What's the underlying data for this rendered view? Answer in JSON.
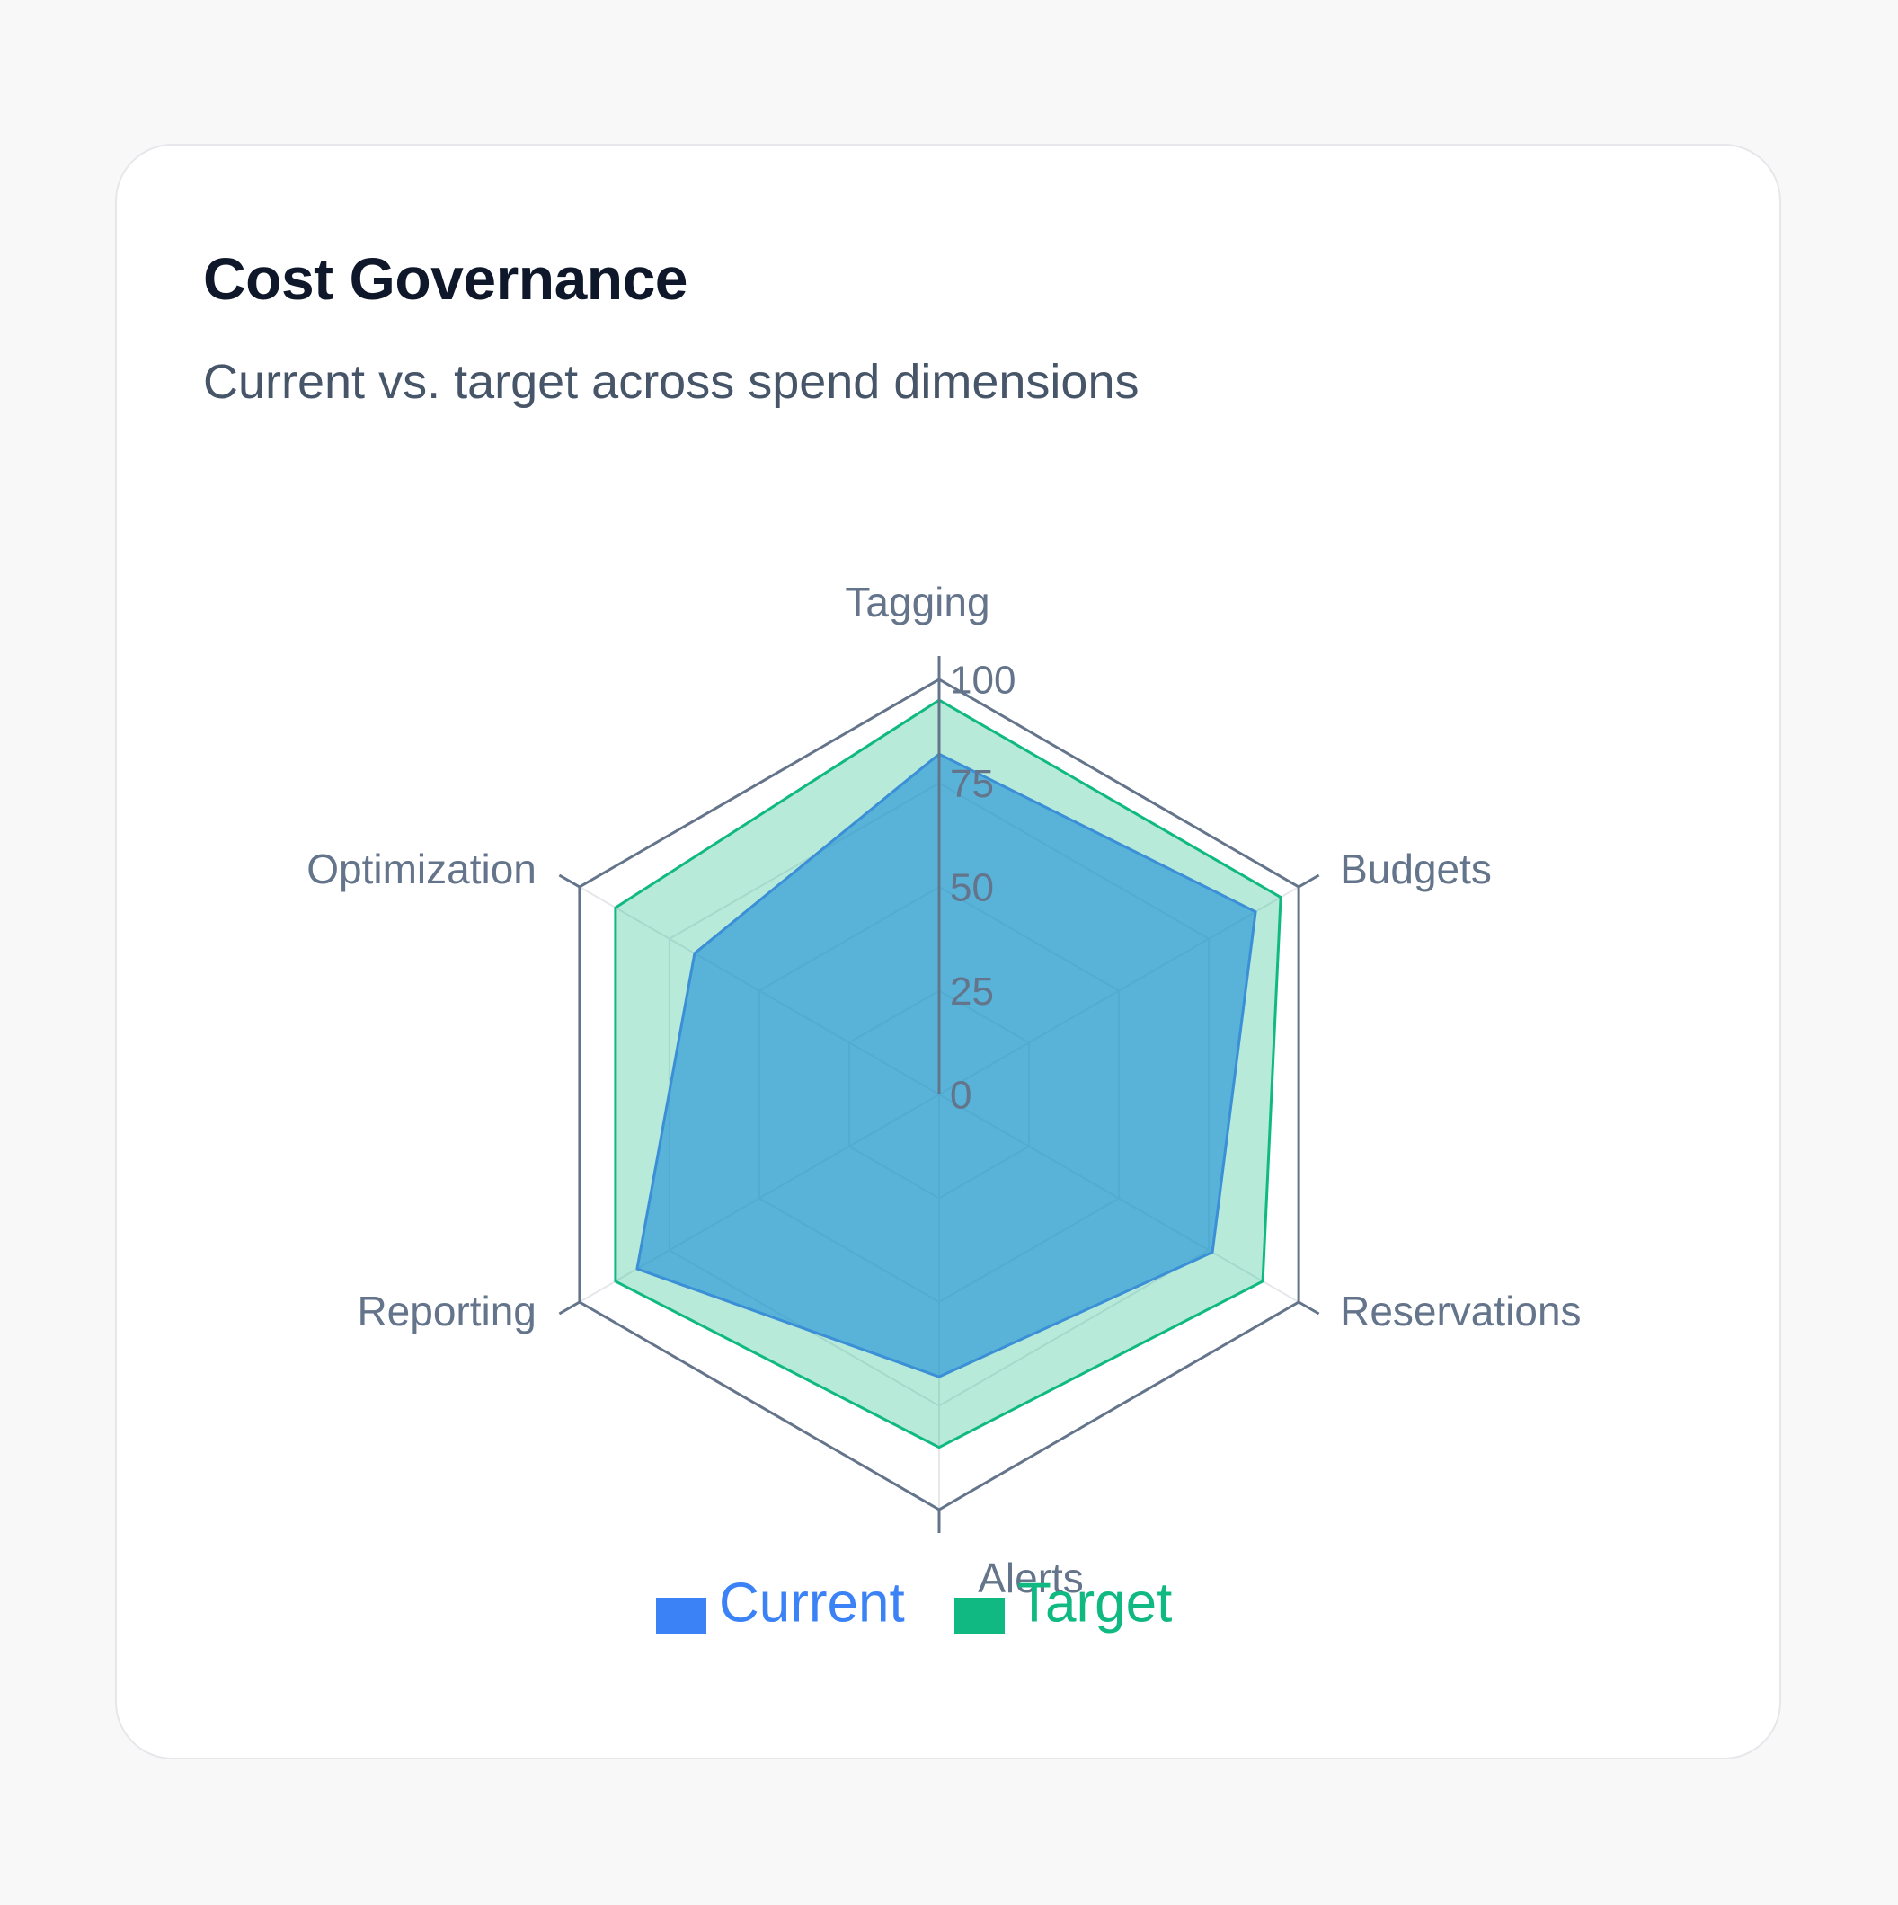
{
  "card": {
    "title": "Cost Governance",
    "subtitle": "Current vs. target across spend dimensions"
  },
  "chart_data": {
    "type": "radar",
    "axes": [
      "Tagging",
      "Budgets",
      "Reservations",
      "Alerts",
      "Reporting",
      "Optimization"
    ],
    "ticks": [
      "0",
      "25",
      "50",
      "75",
      "100"
    ],
    "range": [
      0,
      100
    ],
    "grid": true,
    "legend_position": "bottom",
    "series": [
      {
        "name": "Current",
        "values": [
          82,
          88,
          76,
          68,
          84,
          68
        ],
        "color": "#3b82f6"
      },
      {
        "name": "Target",
        "values": [
          95,
          95,
          90,
          85,
          90,
          90
        ],
        "color": "#10b981"
      }
    ]
  }
}
